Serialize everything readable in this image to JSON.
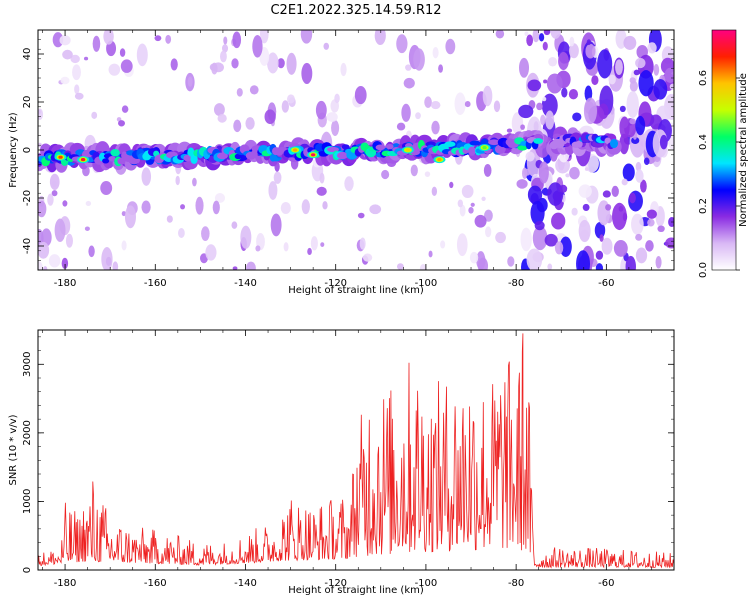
{
  "figure_title": "C2E1.2022.325.14.59.R12",
  "chart_data": [
    {
      "type": "heatmap",
      "title": "C2E1.2022.325.14.59.R12",
      "xlabel": "Height of straight line (km)",
      "ylabel": "Frequency (Hz)",
      "xlim": [
        -186,
        -45
      ],
      "ylim": [
        -50,
        50
      ],
      "xticks": [
        -180,
        -160,
        -140,
        -120,
        -100,
        -80,
        -60
      ],
      "yticks": [
        -40,
        -20,
        0,
        20,
        40
      ],
      "colorbar": {
        "label": "Normalized spectral amplitude",
        "range": [
          0,
          0.75
        ],
        "ticks": [
          0.0,
          0.2,
          0.4,
          0.6
        ],
        "colors": [
          "#ffffff",
          "#d9b8f5",
          "#8a2be2",
          "#0000ff",
          "#00e5ff",
          "#00ff66",
          "#c6ff00",
          "#ffc400",
          "#ff2000",
          "#ff0080"
        ]
      },
      "band": {
        "center_hz": [
          {
            "x": -186,
            "y": -3
          },
          {
            "x": -170,
            "y": -3
          },
          {
            "x": -150,
            "y": -2
          },
          {
            "x": -130,
            "y": -1
          },
          {
            "x": -110,
            "y": 0
          },
          {
            "x": -90,
            "y": 1
          },
          {
            "x": -80,
            "y": 2
          },
          {
            "x": -70,
            "y": 4
          },
          {
            "x": -60,
            "y": 3
          }
        ],
        "half_width_hz": 4,
        "band_end_km": -58,
        "noise_background_boundary_km": -78
      },
      "hot_spots": [
        {
          "x": -181,
          "y": -3,
          "amp": 0.65
        },
        {
          "x": -176,
          "y": -4,
          "amp": 0.7
        },
        {
          "x": -129,
          "y": 0,
          "amp": 0.6
        },
        {
          "x": -125,
          "y": -2,
          "amp": 0.72
        },
        {
          "x": -104,
          "y": 0,
          "amp": 0.55
        },
        {
          "x": -97,
          "y": -4,
          "amp": 0.6
        },
        {
          "x": -87,
          "y": 1,
          "amp": 0.45
        }
      ]
    },
    {
      "type": "line",
      "xlabel": "Height of straight line (km)",
      "ylabel": "SNR (10 * v/v)",
      "xlim": [
        -186,
        -45
      ],
      "ylim": [
        0,
        3500
      ],
      "xticks": [
        -180,
        -160,
        -140,
        -120,
        -100,
        -80,
        -60
      ],
      "yticks": [
        0,
        1000,
        2000,
        3000
      ],
      "color": "#ee2222",
      "envelope": [
        {
          "x": -186,
          "y": 250
        },
        {
          "x": -181,
          "y": 350
        },
        {
          "x": -180,
          "y": 1000
        },
        {
          "x": -177,
          "y": 850
        },
        {
          "x": -174,
          "y": 1450
        },
        {
          "x": -170,
          "y": 800
        },
        {
          "x": -165,
          "y": 650
        },
        {
          "x": -160,
          "y": 600
        },
        {
          "x": -150,
          "y": 420
        },
        {
          "x": -145,
          "y": 420
        },
        {
          "x": -140,
          "y": 550
        },
        {
          "x": -135,
          "y": 700
        },
        {
          "x": -130,
          "y": 1150
        },
        {
          "x": -125,
          "y": 1000
        },
        {
          "x": -120,
          "y": 1100
        },
        {
          "x": -117,
          "y": 1200
        },
        {
          "x": -115,
          "y": 2100
        },
        {
          "x": -112,
          "y": 3000
        },
        {
          "x": -108,
          "y": 2700
        },
        {
          "x": -103,
          "y": 3200
        },
        {
          "x": -99,
          "y": 2700
        },
        {
          "x": -94,
          "y": 2900
        },
        {
          "x": -90,
          "y": 3100
        },
        {
          "x": -86,
          "y": 2700
        },
        {
          "x": -83,
          "y": 3300
        },
        {
          "x": -80,
          "y": 2900
        },
        {
          "x": -78.5,
          "y": 3450
        },
        {
          "x": -77,
          "y": 2500
        },
        {
          "x": -76,
          "y": 300
        },
        {
          "x": -70,
          "y": 350
        },
        {
          "x": -60,
          "y": 320
        },
        {
          "x": -50,
          "y": 280
        },
        {
          "x": -45,
          "y": 250
        }
      ],
      "baseline": [
        {
          "x": -186,
          "y": 180
        },
        {
          "x": -176,
          "y": 350
        },
        {
          "x": -165,
          "y": 300
        },
        {
          "x": -150,
          "y": 200
        },
        {
          "x": -140,
          "y": 280
        },
        {
          "x": -130,
          "y": 400
        },
        {
          "x": -120,
          "y": 450
        },
        {
          "x": -112,
          "y": 500
        },
        {
          "x": -100,
          "y": 650
        },
        {
          "x": -90,
          "y": 700
        },
        {
          "x": -80,
          "y": 750
        },
        {
          "x": -77,
          "y": 600
        },
        {
          "x": -76,
          "y": 100
        },
        {
          "x": -60,
          "y": 120
        },
        {
          "x": -45,
          "y": 100
        }
      ]
    }
  ]
}
